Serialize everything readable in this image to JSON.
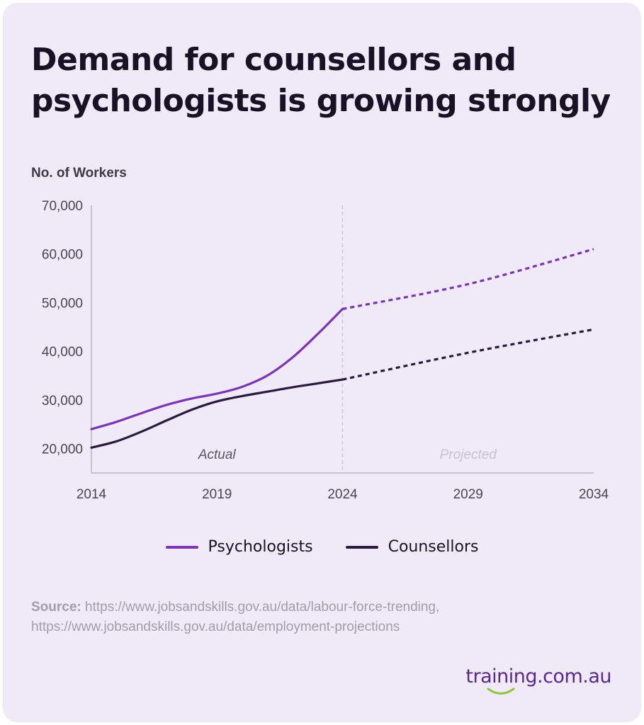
{
  "title": "Demand for counsellors and psychologists is growing strongly",
  "colors": {
    "background": "#f0e9f8",
    "psychologists": "#7b34b4",
    "counsellors": "#2a1a3d",
    "grid_divider": "#cfc6d9"
  },
  "chart_data": {
    "type": "line",
    "ylabel": "No. of Workers",
    "xlabel": "",
    "x_ticks": [
      2014,
      2019,
      2024,
      2029,
      2034
    ],
    "y_ticks": [
      "20,000",
      "30,000",
      "40,000",
      "50,000",
      "60,000",
      "70,000"
    ],
    "ylim": [
      15000,
      70000
    ],
    "xlim": [
      2014,
      2034
    ],
    "divider_x": 2024,
    "region_labels": {
      "actual": "Actual",
      "projected": "Projected"
    },
    "legend_position": "bottom-center",
    "series": [
      {
        "name": "Psychologists",
        "color": "#7b34b4",
        "actual": [
          [
            2014,
            24000
          ],
          [
            2015,
            25500
          ],
          [
            2016,
            27300
          ],
          [
            2017,
            29000
          ],
          [
            2018,
            30300
          ],
          [
            2019,
            31300
          ],
          [
            2020,
            32700
          ],
          [
            2021,
            35000
          ],
          [
            2022,
            38700
          ],
          [
            2023,
            43500
          ],
          [
            2024,
            48700
          ]
        ],
        "projected": [
          [
            2024,
            48700
          ],
          [
            2029,
            53800
          ],
          [
            2034,
            61000
          ]
        ]
      },
      {
        "name": "Counsellors",
        "color": "#2a1a3d",
        "actual": [
          [
            2014,
            20200
          ],
          [
            2015,
            21500
          ],
          [
            2016,
            23500
          ],
          [
            2017,
            25800
          ],
          [
            2018,
            28000
          ],
          [
            2019,
            29700
          ],
          [
            2020,
            30800
          ],
          [
            2021,
            31700
          ],
          [
            2022,
            32600
          ],
          [
            2023,
            33400
          ],
          [
            2024,
            34200
          ]
        ],
        "projected": [
          [
            2024,
            34200
          ],
          [
            2029,
            39700
          ],
          [
            2034,
            44500
          ]
        ]
      }
    ]
  },
  "source": {
    "label": "Source:",
    "line1": "https://www.jobsandskills.gov.au/data/labour-force-trending,",
    "line2": "https://www.jobsandskills.gov.au/data/employment-projections"
  },
  "logo": "training.com.au"
}
